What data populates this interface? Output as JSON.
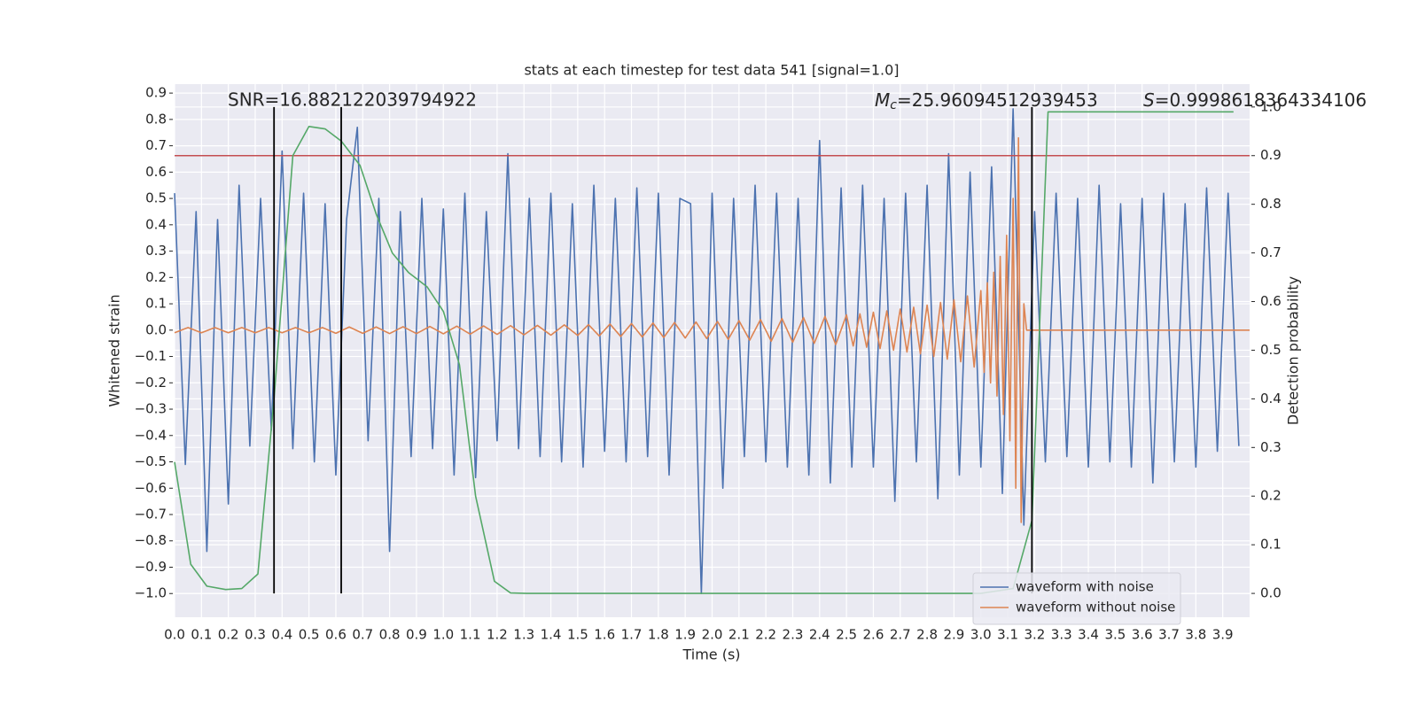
{
  "chart_data": {
    "type": "line",
    "title": "stats at each timestep for test data 541 [signal=1.0]",
    "xlabel": "Time (s)",
    "ylabel": "Whitened strain",
    "y2label": "Detection probability",
    "snr_text": "SNR=16.882122039794922",
    "mc_text": {
      "symbol": "M",
      "subscript": "c",
      "text": "=25.96094512939453"
    },
    "s_text": {
      "symbol": "S",
      "text": "=0.9998618364334106"
    },
    "xlim": [
      0,
      4.0
    ],
    "ylim": [
      -1.09,
      0.934
    ],
    "y2lim": [
      -0.049,
      1.047
    ],
    "grid": true,
    "legend": "lower right",
    "xticks": [
      {
        "value": 0,
        "label": "0.0"
      },
      0.1,
      0.2,
      0.3,
      0.4,
      0.5,
      0.6,
      0.7,
      0.8,
      0.9,
      {
        "value": 1,
        "label": "1.0"
      },
      1.1,
      1.2,
      1.3,
      1.4,
      1.5,
      1.6,
      1.7,
      1.8,
      1.9,
      {
        "value": 2,
        "label": "2.0"
      },
      2.1,
      2.2,
      2.3,
      2.4,
      2.5,
      2.6,
      2.7,
      2.8,
      2.9,
      {
        "value": 3,
        "label": "3.0"
      },
      3.1,
      3.2,
      3.3,
      3.4,
      3.5,
      3.6,
      3.7,
      3.8,
      3.9
    ],
    "yticks": [
      0.9,
      0.8,
      0.7,
      0.6,
      0.5,
      0.4,
      0.3,
      0.2,
      0.1,
      {
        "value": 0,
        "label": "0.0"
      },
      {
        "value": -0.1,
        "label": "−0.1"
      },
      {
        "value": -0.2,
        "label": "−0.2"
      },
      {
        "value": -0.3,
        "label": "−0.3"
      },
      {
        "value": -0.4,
        "label": "−0.4"
      },
      {
        "value": -0.5,
        "label": "−0.5"
      },
      {
        "value": -0.6,
        "label": "−0.6"
      },
      {
        "value": -0.7,
        "label": "−0.7"
      },
      {
        "value": -0.8,
        "label": "−0.8"
      },
      {
        "value": -0.9,
        "label": "−0.9"
      },
      {
        "value": -1.0,
        "label": "−1.0"
      }
    ],
    "y2ticks": [
      {
        "value": 0,
        "label": "0.0"
      },
      0.1,
      0.2,
      0.3,
      0.4,
      0.5,
      0.6,
      0.7,
      0.8,
      0.9,
      {
        "value": 1,
        "label": "1.0"
      }
    ],
    "threshold": {
      "value": 0.9,
      "color": "#c44e52"
    },
    "vlines": {
      "x": [
        0.37,
        0.62,
        3.19
      ],
      "ymin": 0,
      "ymax": 1,
      "color": "#000000"
    },
    "series": [
      {
        "name": "waveform with noise",
        "color": "#4c72b0",
        "x": [
          0,
          0.04,
          0.08,
          0.12,
          0.16,
          0.2,
          0.24,
          0.28,
          0.32,
          0.36,
          0.4,
          0.44,
          0.48,
          0.52,
          0.56,
          0.6,
          0.64,
          0.68,
          0.72,
          0.76,
          0.8,
          0.84,
          0.88,
          0.92,
          0.96,
          1.0,
          1.04,
          1.08,
          1.12,
          1.16,
          1.2,
          1.24,
          1.28,
          1.32,
          1.36,
          1.4,
          1.44,
          1.48,
          1.52,
          1.56,
          1.6,
          1.64,
          1.68,
          1.72,
          1.76,
          1.8,
          1.84,
          1.88,
          1.92,
          1.96,
          2.0,
          2.04,
          2.08,
          2.12,
          2.16,
          2.2,
          2.24,
          2.28,
          2.32,
          2.36,
          2.4,
          2.44,
          2.48,
          2.52,
          2.56,
          2.6,
          2.64,
          2.68,
          2.72,
          2.76,
          2.8,
          2.84,
          2.88,
          2.92,
          2.96,
          3.0,
          3.04,
          3.08,
          3.12,
          3.16,
          3.2,
          3.24,
          3.28,
          3.32,
          3.36,
          3.4,
          3.44,
          3.48,
          3.52,
          3.56,
          3.6,
          3.64,
          3.68,
          3.72,
          3.76,
          3.8,
          3.84,
          3.88,
          3.92,
          3.96
        ],
        "values": [
          0.52,
          -0.51,
          0.45,
          -0.84,
          0.42,
          -0.66,
          0.55,
          -0.44,
          0.5,
          -0.38,
          0.68,
          -0.45,
          0.52,
          -0.5,
          0.48,
          -0.55,
          0.42,
          0.77,
          -0.42,
          0.5,
          -0.84,
          0.45,
          -0.48,
          0.5,
          -0.45,
          0.46,
          -0.55,
          0.52,
          -0.56,
          0.45,
          -0.42,
          0.67,
          -0.45,
          0.5,
          -0.48,
          0.52,
          -0.5,
          0.48,
          -0.52,
          0.55,
          -0.46,
          0.5,
          -0.5,
          0.54,
          -0.48,
          0.52,
          -0.55,
          0.5,
          0.48,
          -1.0,
          0.52,
          -0.6,
          0.5,
          -0.48,
          0.55,
          -0.5,
          0.52,
          -0.52,
          0.5,
          -0.55,
          0.72,
          -0.58,
          0.54,
          -0.52,
          0.55,
          -0.52,
          0.5,
          -0.65,
          0.52,
          -0.5,
          0.55,
          -0.64,
          0.67,
          -0.55,
          0.6,
          -0.52,
          0.62,
          -0.62,
          0.84,
          -0.74,
          0.45,
          -0.5,
          0.52,
          -0.48,
          0.5,
          -0.52,
          0.55,
          -0.5,
          0.48,
          -0.52,
          0.5,
          -0.58,
          0.52,
          -0.5,
          0.48,
          -0.52,
          0.54,
          -0.46,
          0.52,
          -0.44
        ]
      },
      {
        "name": "waveform without noise",
        "color": "#dd8452",
        "x": [
          0,
          0.05,
          0.1,
          0.15,
          0.2,
          0.25,
          0.3,
          0.35,
          0.4,
          0.45,
          0.5,
          0.55,
          0.6,
          0.65,
          0.7,
          0.75,
          0.8,
          0.85,
          0.9,
          0.95,
          1.0,
          1.05,
          1.1,
          1.15,
          1.2,
          1.25,
          1.3,
          1.35,
          1.4,
          1.45,
          1.5,
          1.54,
          1.58,
          1.62,
          1.66,
          1.7,
          1.74,
          1.78,
          1.82,
          1.86,
          1.9,
          1.94,
          1.98,
          2.02,
          2.06,
          2.1,
          2.14,
          2.18,
          2.22,
          2.26,
          2.3,
          2.34,
          2.38,
          2.42,
          2.46,
          2.5,
          2.525,
          2.55,
          2.575,
          2.6,
          2.625,
          2.65,
          2.675,
          2.7,
          2.725,
          2.75,
          2.775,
          2.8,
          2.825,
          2.85,
          2.875,
          2.9,
          2.925,
          2.95,
          2.975,
          3.0,
          3.012,
          3.024,
          3.036,
          3.048,
          3.06,
          3.072,
          3.084,
          3.096,
          3.108,
          3.12,
          3.13,
          3.14,
          3.15,
          3.16,
          3.17,
          4.0
        ],
        "values": [
          -0.01,
          0.01,
          -0.01,
          0.01,
          -0.01,
          0.01,
          -0.01,
          0.01,
          -0.01,
          0.01,
          -0.01,
          0.01,
          -0.012,
          0.012,
          -0.012,
          0.012,
          -0.013,
          0.013,
          -0.013,
          0.014,
          -0.014,
          0.015,
          -0.015,
          0.016,
          -0.016,
          0.017,
          -0.018,
          0.018,
          -0.019,
          0.02,
          -0.02,
          0.021,
          -0.022,
          0.023,
          -0.024,
          0.025,
          -0.026,
          0.027,
          -0.028,
          0.029,
          -0.03,
          0.031,
          -0.032,
          0.033,
          -0.035,
          0.036,
          -0.038,
          0.04,
          -0.042,
          0.044,
          -0.046,
          0.048,
          -0.05,
          0.052,
          -0.055,
          0.058,
          -0.06,
          0.062,
          -0.065,
          0.068,
          -0.07,
          0.073,
          -0.076,
          0.08,
          -0.083,
          0.087,
          -0.09,
          0.095,
          -0.1,
          0.105,
          -0.11,
          0.115,
          -0.12,
          0.13,
          -0.14,
          0.15,
          -0.16,
          0.18,
          -0.2,
          0.22,
          -0.25,
          0.28,
          -0.32,
          0.36,
          -0.42,
          0.5,
          -0.6,
          0.73,
          -0.73,
          0.1,
          0,
          0
        ]
      },
      {
        "color": "#55a868",
        "axis": "y2",
        "x": [
          0,
          0.06,
          0.12,
          0.19,
          0.25,
          0.31,
          0.37,
          0.44,
          0.5,
          0.56,
          0.62,
          0.69,
          0.75,
          0.81,
          0.87,
          0.94,
          1.0,
          1.06,
          1.12,
          1.19,
          1.25,
          1.31,
          3.0,
          3.12,
          3.19,
          3.25,
          3.94
        ],
        "values": [
          0.27,
          0.06,
          0.015,
          0.008,
          0.01,
          0.04,
          0.4,
          0.9,
          0.96,
          0.955,
          0.93,
          0.88,
          0.78,
          0.7,
          0.66,
          0.63,
          0.58,
          0.47,
          0.2,
          0.025,
          0.001,
          0,
          0,
          0.01,
          0.15,
          0.99,
          0.99
        ]
      }
    ]
  }
}
